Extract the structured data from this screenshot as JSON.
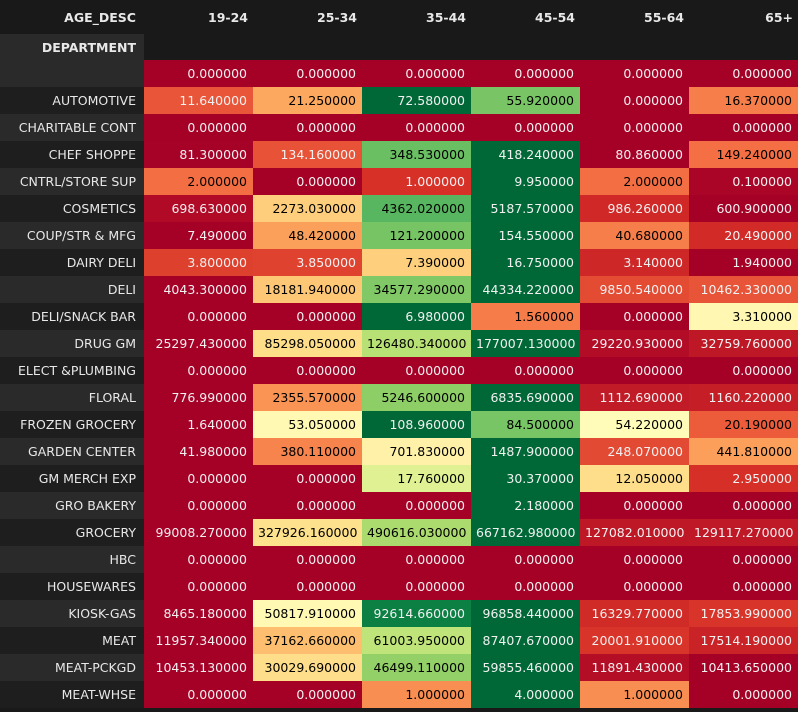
{
  "chart_data": {
    "type": "heatmap",
    "columns_label": "AGE_DESC",
    "index_label": "DEPARTMENT",
    "columns": [
      "19-24",
      "25-34",
      "35-44",
      "45-54",
      "55-64",
      "65+"
    ],
    "colormap": "RdYlGn (per-row normalization)",
    "rows": [
      {
        "label": "",
        "values": [
          "0.000000",
          "0.000000",
          "0.000000",
          "0.000000",
          "0.000000",
          "0.000000"
        ]
      },
      {
        "label": "AUTOMOTIVE",
        "values": [
          "11.640000",
          "21.250000",
          "72.580000",
          "55.920000",
          "0.000000",
          "16.370000"
        ]
      },
      {
        "label": "CHARITABLE CONT",
        "values": [
          "0.000000",
          "0.000000",
          "0.000000",
          "0.000000",
          "0.000000",
          "0.000000"
        ]
      },
      {
        "label": "CHEF SHOPPE",
        "values": [
          "81.300000",
          "134.160000",
          "348.530000",
          "418.240000",
          "80.860000",
          "149.240000"
        ]
      },
      {
        "label": "CNTRL/STORE SUP",
        "values": [
          "2.000000",
          "0.000000",
          "1.000000",
          "9.950000",
          "2.000000",
          "0.100000"
        ]
      },
      {
        "label": "COSMETICS",
        "values": [
          "698.630000",
          "2273.030000",
          "4362.020000",
          "5187.570000",
          "986.260000",
          "600.900000"
        ]
      },
      {
        "label": "COUP/STR & MFG",
        "values": [
          "7.490000",
          "48.420000",
          "121.200000",
          "154.550000",
          "40.680000",
          "20.490000"
        ]
      },
      {
        "label": "DAIRY DELI",
        "values": [
          "3.800000",
          "3.850000",
          "7.390000",
          "16.750000",
          "3.140000",
          "1.940000"
        ]
      },
      {
        "label": "DELI",
        "values": [
          "4043.300000",
          "18181.940000",
          "34577.290000",
          "44334.220000",
          "9850.540000",
          "10462.330000"
        ]
      },
      {
        "label": "DELI/SNACK BAR",
        "values": [
          "0.000000",
          "0.000000",
          "6.980000",
          "1.560000",
          "0.000000",
          "3.310000"
        ]
      },
      {
        "label": "DRUG GM",
        "values": [
          "25297.430000",
          "85298.050000",
          "126480.340000",
          "177007.130000",
          "29220.930000",
          "32759.760000"
        ]
      },
      {
        "label": "ELECT &PLUMBING",
        "values": [
          "0.000000",
          "0.000000",
          "0.000000",
          "0.000000",
          "0.000000",
          "0.000000"
        ]
      },
      {
        "label": "FLORAL",
        "values": [
          "776.990000",
          "2355.570000",
          "5246.600000",
          "6835.690000",
          "1112.690000",
          "1160.220000"
        ]
      },
      {
        "label": "FROZEN GROCERY",
        "values": [
          "1.640000",
          "53.050000",
          "108.960000",
          "84.500000",
          "54.220000",
          "20.190000"
        ]
      },
      {
        "label": "GARDEN CENTER",
        "values": [
          "41.980000",
          "380.110000",
          "701.830000",
          "1487.900000",
          "248.070000",
          "441.810000"
        ]
      },
      {
        "label": "GM MERCH EXP",
        "values": [
          "0.000000",
          "0.000000",
          "17.760000",
          "30.370000",
          "12.050000",
          "2.950000"
        ]
      },
      {
        "label": "GRO BAKERY",
        "values": [
          "0.000000",
          "0.000000",
          "0.000000",
          "2.180000",
          "0.000000",
          "0.000000"
        ]
      },
      {
        "label": "GROCERY",
        "values": [
          "99008.270000",
          "327926.160000",
          "490616.030000",
          "667162.980000",
          "127082.010000",
          "129117.270000"
        ]
      },
      {
        "label": "HBC",
        "values": [
          "0.000000",
          "0.000000",
          "0.000000",
          "0.000000",
          "0.000000",
          "0.000000"
        ]
      },
      {
        "label": "HOUSEWARES",
        "values": [
          "0.000000",
          "0.000000",
          "0.000000",
          "0.000000",
          "0.000000",
          "0.000000"
        ]
      },
      {
        "label": "KIOSK-GAS",
        "values": [
          "8465.180000",
          "50817.910000",
          "92614.660000",
          "96858.440000",
          "16329.770000",
          "17853.990000"
        ]
      },
      {
        "label": "MEAT",
        "values": [
          "11957.340000",
          "37162.660000",
          "61003.950000",
          "87407.670000",
          "20001.910000",
          "17514.190000"
        ]
      },
      {
        "label": "MEAT-PCKGD",
        "values": [
          "10453.130000",
          "30029.690000",
          "46499.110000",
          "59855.460000",
          "11891.430000",
          "10413.650000"
        ]
      },
      {
        "label": "MEAT-WHSE",
        "values": [
          "0.000000",
          "0.000000",
          "1.000000",
          "4.000000",
          "1.000000",
          "0.000000"
        ]
      }
    ]
  }
}
